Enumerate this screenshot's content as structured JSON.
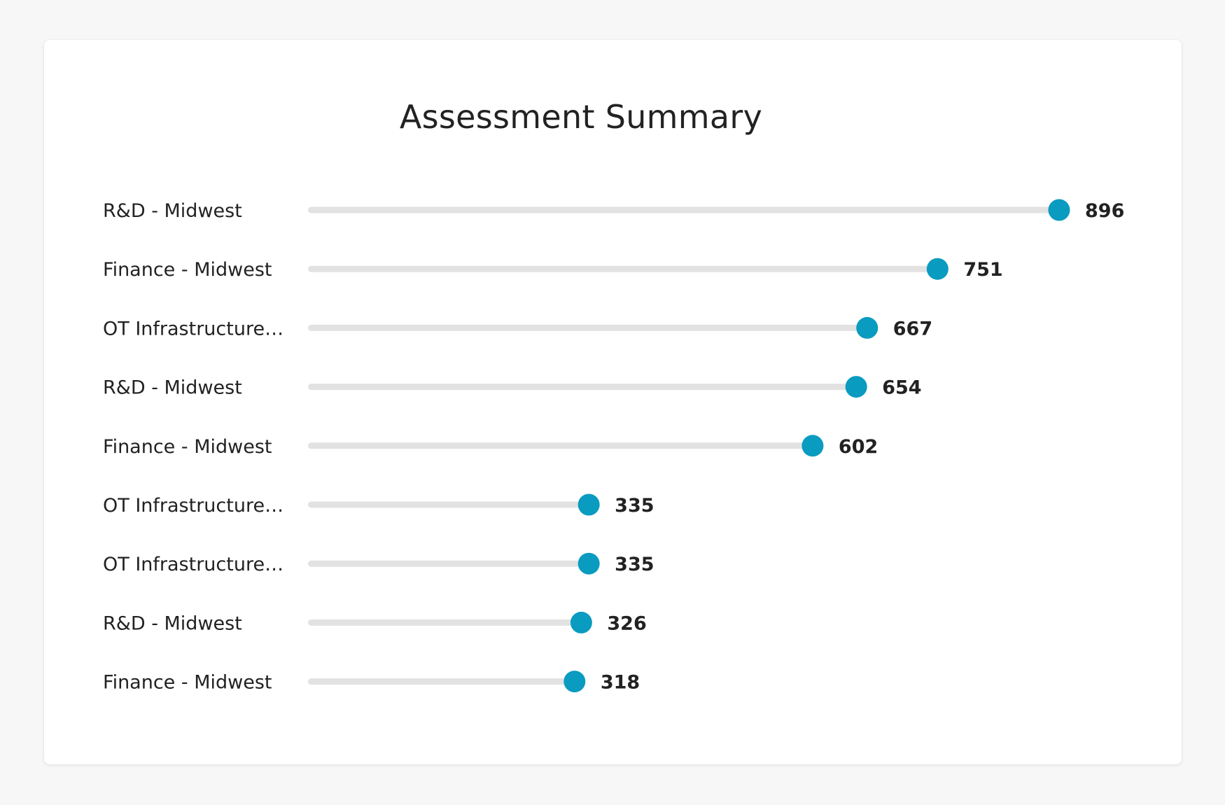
{
  "chart_data": {
    "type": "bar",
    "subtype": "lollipop-horizontal",
    "title": "Assessment Summary",
    "xlabel": "",
    "ylabel": "",
    "grid": false,
    "categories": [
      "R&D - Midwest",
      "Finance - Midwest",
      "OT Infrastructure…",
      "R&D - Midwest",
      "Finance - Midwest",
      "OT Infrastructure…",
      "OT Infrastructure…",
      "R&D - Midwest",
      "Finance - Midwest"
    ],
    "values": [
      896,
      751,
      667,
      654,
      602,
      335,
      335,
      326,
      318
    ],
    "xlim": [
      0,
      896
    ],
    "colors": {
      "dot": "#0a9bc0",
      "track": "#e2e2e2",
      "text": "#222222"
    }
  }
}
